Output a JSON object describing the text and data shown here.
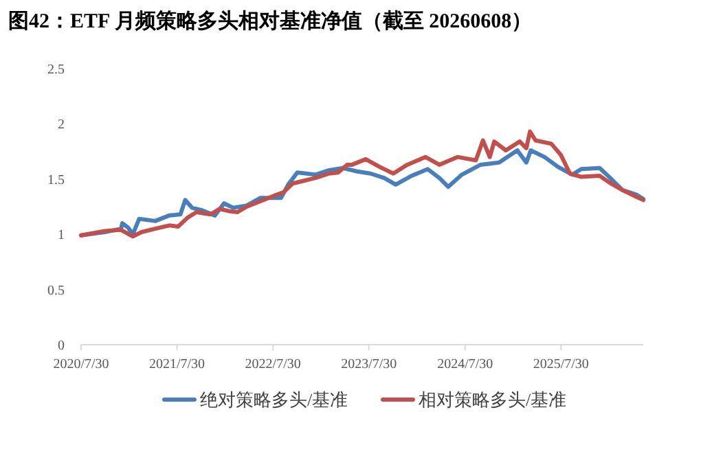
{
  "chart_data": {
    "type": "line",
    "title": "图42：ETF 月频策略多头相对基准净值（截至 20260608）",
    "xlim": [
      "2020-07-30",
      "2026-06-08"
    ],
    "xticks": [
      {
        "value": "2020-07-30",
        "label": "2020/7/30"
      },
      {
        "value": "2021-07-30",
        "label": "2021/7/30"
      },
      {
        "value": "2022-07-30",
        "label": "2022/7/30"
      },
      {
        "value": "2023-07-30",
        "label": "2023/7/30"
      },
      {
        "value": "2024-07-30",
        "label": "2024/7/30"
      },
      {
        "value": "2025-07-30",
        "label": "2025/7/30"
      }
    ],
    "ylim": [
      0,
      2.5
    ],
    "yticks": [
      0,
      0.5,
      1,
      1.5,
      2,
      2.5
    ],
    "grid": false,
    "legend": "bottom",
    "marker": "none",
    "line_style": "solid",
    "series": [
      {
        "name": "绝对策略多头/基准",
        "color": "#4a7ebb",
        "x": [
          "2020-07-30",
          "2020-10-29",
          "2020-12-29",
          "2021-01-03",
          "2021-01-25",
          "2021-02-12",
          "2021-03-08",
          "2021-05-08",
          "2021-06-30",
          "2021-08-12",
          "2021-08-30",
          "2021-09-25",
          "2021-10-30",
          "2021-12-21",
          "2022-01-25",
          "2022-03-01",
          "2022-04-21",
          "2022-06-13",
          "2022-08-30",
          "2022-09-26",
          "2022-10-31",
          "2023-01-08",
          "2023-03-01",
          "2023-04-22",
          "2023-06-13",
          "2023-08-05",
          "2023-09-26",
          "2023-11-09",
          "2024-01-09",
          "2024-03-10",
          "2024-04-23",
          "2024-05-27",
          "2024-07-18",
          "2024-09-27",
          "2024-12-06",
          "2025-02-14",
          "2025-03-20",
          "2025-04-06",
          "2025-05-28",
          "2025-07-19",
          "2025-09-11",
          "2025-10-15",
          "2025-12-24",
          "2026-01-29",
          "2026-03-21",
          "2026-05-12",
          "2026-06-08"
        ],
        "values": [
          0.99,
          1.02,
          1.05,
          1.1,
          1.06,
          1.0,
          1.14,
          1.12,
          1.17,
          1.18,
          1.31,
          1.24,
          1.22,
          1.17,
          1.28,
          1.24,
          1.26,
          1.33,
          1.33,
          1.45,
          1.56,
          1.54,
          1.58,
          1.6,
          1.57,
          1.55,
          1.51,
          1.45,
          1.53,
          1.59,
          1.51,
          1.43,
          1.54,
          1.63,
          1.65,
          1.76,
          1.65,
          1.76,
          1.7,
          1.61,
          1.54,
          1.59,
          1.6,
          1.52,
          1.4,
          1.36,
          1.32
        ]
      },
      {
        "name": "相对策略多头/基准",
        "color": "#c0504d",
        "x": [
          "2020-07-30",
          "2020-10-29",
          "2020-12-29",
          "2021-02-12",
          "2021-03-17",
          "2021-05-08",
          "2021-06-30",
          "2021-08-03",
          "2021-09-08",
          "2021-10-12",
          "2021-12-04",
          "2022-01-08",
          "2022-02-12",
          "2022-03-17",
          "2022-04-21",
          "2022-06-13",
          "2022-08-04",
          "2022-09-08",
          "2022-10-13",
          "2022-11-17",
          "2023-01-08",
          "2023-03-01",
          "2023-04-04",
          "2023-05-09",
          "2023-05-27",
          "2023-07-18",
          "2023-09-09",
          "2023-10-31",
          "2023-12-23",
          "2024-03-01",
          "2024-04-23",
          "2024-07-01",
          "2024-09-09",
          "2024-10-06",
          "2024-11-01",
          "2024-11-18",
          "2025-01-01",
          "2025-02-23",
          "2025-03-20",
          "2025-04-03",
          "2025-04-24",
          "2025-06-23",
          "2025-07-29",
          "2025-09-02",
          "2025-10-15",
          "2025-12-24",
          "2026-01-29",
          "2026-03-21",
          "2026-05-12",
          "2026-06-08"
        ],
        "values": [
          0.99,
          1.03,
          1.04,
          0.98,
          1.02,
          1.05,
          1.08,
          1.07,
          1.15,
          1.2,
          1.18,
          1.23,
          1.21,
          1.2,
          1.25,
          1.3,
          1.35,
          1.38,
          1.46,
          1.48,
          1.51,
          1.55,
          1.56,
          1.63,
          1.63,
          1.68,
          1.61,
          1.55,
          1.63,
          1.7,
          1.63,
          1.7,
          1.67,
          1.85,
          1.7,
          1.84,
          1.76,
          1.84,
          1.78,
          1.93,
          1.85,
          1.82,
          1.72,
          1.55,
          1.52,
          1.53,
          1.47,
          1.4,
          1.34,
          1.31
        ]
      }
    ]
  }
}
